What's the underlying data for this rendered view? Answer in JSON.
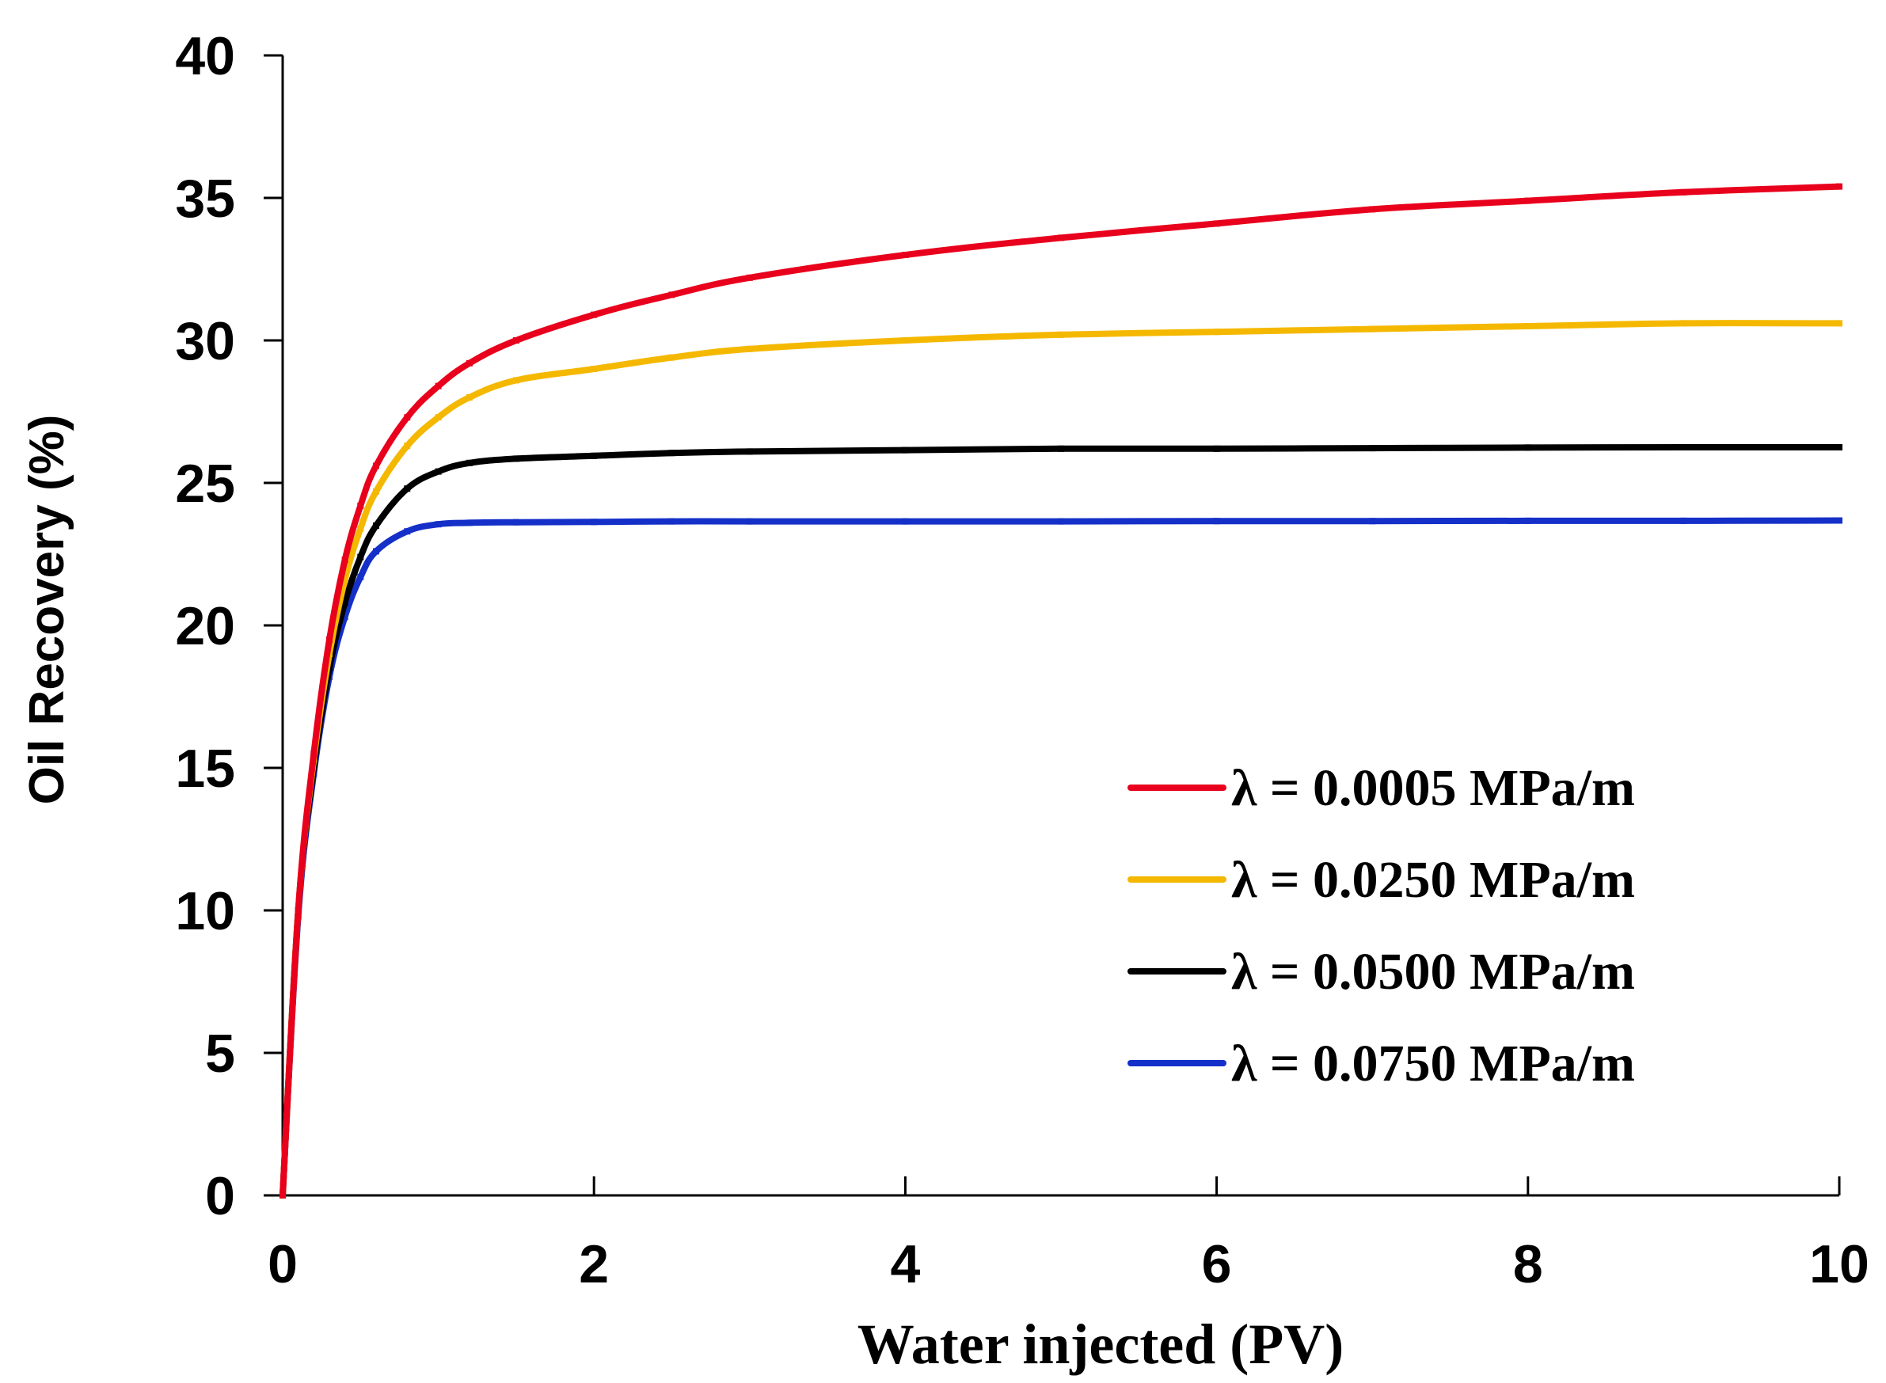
{
  "chart_data": {
    "type": "line",
    "title": "",
    "xlabel": "Water injected (PV)",
    "ylabel": "Oil Recovery (%)",
    "xlim": [
      0,
      10
    ],
    "ylim": [
      0,
      40
    ],
    "xticks": [
      0,
      2,
      4,
      6,
      8,
      10
    ],
    "yticks": [
      0,
      5,
      10,
      15,
      20,
      25,
      30,
      35,
      40
    ],
    "xtick_labels": [
      "0",
      "2",
      "4",
      "6",
      "8",
      "10"
    ],
    "ytick_labels": [
      "0",
      "5",
      "10",
      "15",
      "20",
      "25",
      "30",
      "35",
      "40"
    ],
    "grid": false,
    "legend_position": "right-middle",
    "x": [
      0,
      0.1,
      0.2,
      0.3,
      0.4,
      0.5,
      0.6,
      0.8,
      1.0,
      1.2,
      1.5,
      2.0,
      2.5,
      3.0,
      4.0,
      5.0,
      6.0,
      7.0,
      8.0,
      9.0,
      10.0
    ],
    "series": [
      {
        "name": "λ = 0.0005 MPa/m",
        "color": "#e8001c",
        "values": [
          0,
          10.0,
          15.5,
          19.5,
          22.3,
          24.2,
          25.6,
          27.3,
          28.4,
          29.2,
          30.0,
          30.9,
          31.6,
          32.2,
          33.0,
          33.6,
          34.1,
          34.6,
          34.9,
          35.2,
          35.4
        ]
      },
      {
        "name": "λ = 0.0250 MPa/m",
        "color": "#f5b800",
        "values": [
          0,
          10.0,
          15.3,
          19.0,
          21.6,
          23.4,
          24.7,
          26.3,
          27.3,
          28.0,
          28.6,
          29.0,
          29.4,
          29.7,
          30.0,
          30.2,
          30.3,
          30.4,
          30.5,
          30.6,
          30.6
        ]
      },
      {
        "name": "λ = 0.0500 MPa/m",
        "color": "#000000",
        "values": [
          0,
          10.0,
          15.0,
          18.5,
          20.8,
          22.4,
          23.5,
          24.8,
          25.4,
          25.7,
          25.85,
          25.95,
          26.05,
          26.1,
          26.15,
          26.2,
          26.2,
          26.22,
          26.24,
          26.25,
          26.25
        ]
      },
      {
        "name": "λ = 0.0750 MPa/m",
        "color": "#1530c8",
        "values": [
          0,
          9.8,
          14.8,
          18.2,
          20.3,
          21.7,
          22.6,
          23.3,
          23.55,
          23.6,
          23.62,
          23.63,
          23.65,
          23.65,
          23.65,
          23.65,
          23.66,
          23.66,
          23.67,
          23.67,
          23.68
        ]
      }
    ]
  }
}
